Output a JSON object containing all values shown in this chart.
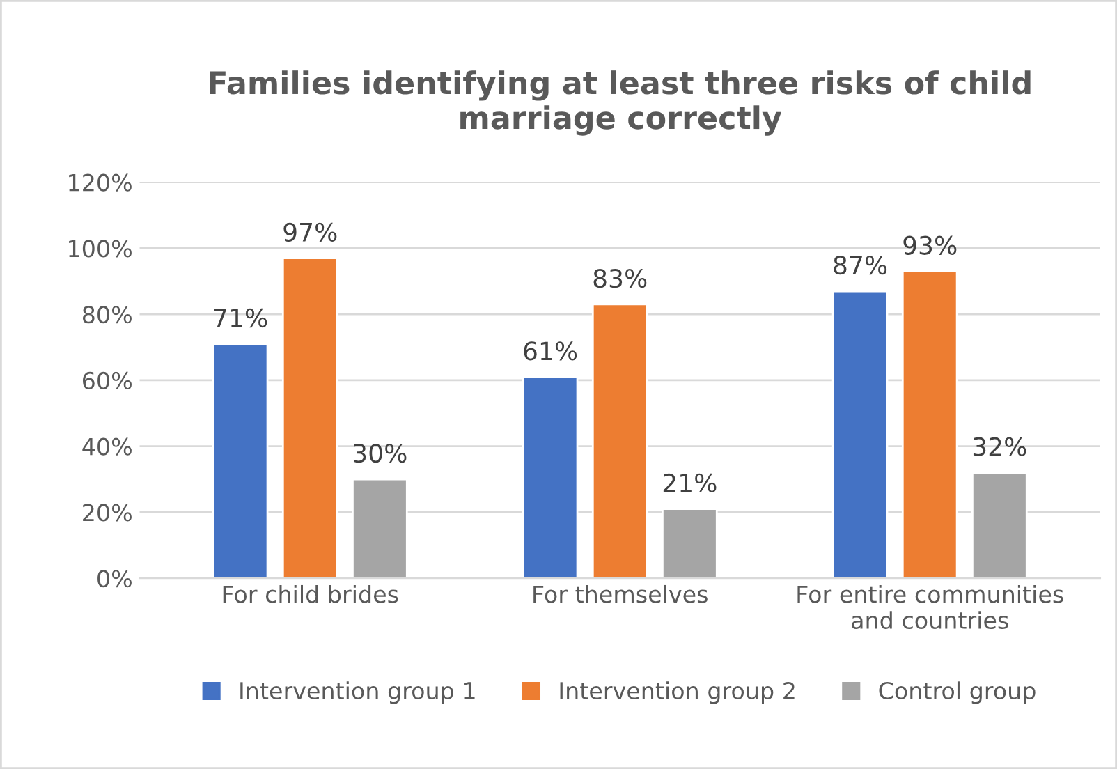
{
  "chart_data": {
    "type": "bar",
    "title": "Families identifying at least three risks of child marriage correctly",
    "categories": [
      "For child brides",
      "For themselves",
      "For entire communities\nand countries"
    ],
    "series": [
      {
        "name": "Intervention group 1",
        "color": "#4472c4",
        "values": [
          71,
          61,
          87
        ],
        "value_labels": [
          "71%",
          "61%",
          "87%"
        ]
      },
      {
        "name": "Intervention group 2",
        "color": "#ed7d31",
        "values": [
          97,
          83,
          93
        ],
        "value_labels": [
          "97%",
          "83%",
          "93%"
        ]
      },
      {
        "name": "Control group",
        "color": "#a5a5a5",
        "values": [
          30,
          21,
          32
        ],
        "value_labels": [
          "30%",
          "21%",
          "32%"
        ]
      }
    ],
    "ylim": [
      0,
      120
    ],
    "yticks": [
      {
        "value": 0,
        "label": "0%"
      },
      {
        "value": 20,
        "label": "20%"
      },
      {
        "value": 40,
        "label": "40%"
      },
      {
        "value": 60,
        "label": "60%"
      },
      {
        "value": 80,
        "label": "80%"
      },
      {
        "value": 100,
        "label": "100%"
      },
      {
        "value": 120,
        "label": "120%"
      }
    ],
    "grid": "y",
    "legend": "bottom"
  }
}
